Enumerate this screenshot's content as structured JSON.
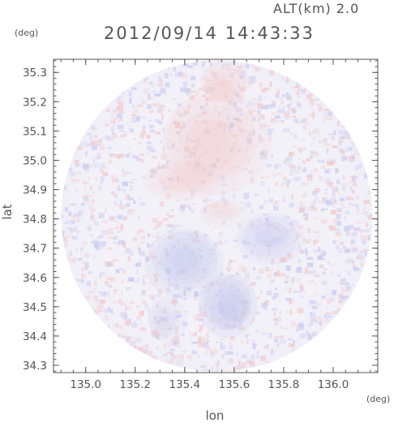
{
  "figure": {
    "altitude_label": "ALT(km) 2.0",
    "timestamp": "2012/09/14 14:43:33"
  },
  "chart_data": {
    "type": "heatmap",
    "title": "2012/09/14 14:43:33",
    "subtitle": "ALT(km) 2.0",
    "xlabel": "lon",
    "ylabel": "lat",
    "x_unit": "(deg)",
    "y_unit": "(deg)",
    "xlim": [
      134.87,
      136.18
    ],
    "ylim": [
      34.275,
      35.345
    ],
    "x_ticks": [
      135.0,
      135.2,
      135.4,
      135.6,
      135.8,
      136.0
    ],
    "x_tick_labels": [
      "135.0",
      "135.2",
      "135.4",
      "135.6",
      "135.8",
      "136.0"
    ],
    "y_ticks": [
      34.3,
      34.4,
      34.5,
      34.6,
      34.7,
      34.8,
      34.9,
      35.0,
      35.1,
      35.2,
      35.3
    ],
    "y_tick_labels": [
      "34.3",
      "34.4",
      "34.5",
      "34.6",
      "34.7",
      "34.8",
      "34.9",
      "35.0",
      "35.1",
      "35.2",
      "35.3"
    ],
    "radar_coverage": {
      "center_lon": 135.53,
      "center_lat": 34.81,
      "shape": "circle"
    },
    "colors": {
      "positive": "#f2c8c8",
      "negative": "#c4c8f0",
      "neutral": "#f3f1f8",
      "axis": "#555555"
    },
    "regions": [
      {
        "lon": 135.52,
        "lat": 35.06,
        "lon_r": 0.22,
        "lat_r": 0.18,
        "sign": "positive",
        "strength": 0.55
      },
      {
        "lon": 135.55,
        "lat": 35.26,
        "lon_r": 0.1,
        "lat_r": 0.07,
        "sign": "positive",
        "strength": 0.65
      },
      {
        "lon": 135.4,
        "lat": 34.93,
        "lon_r": 0.16,
        "lat_r": 0.07,
        "sign": "positive",
        "strength": 0.35
      },
      {
        "lon": 135.4,
        "lat": 34.65,
        "lon_r": 0.16,
        "lat_r": 0.12,
        "sign": "negative",
        "strength": 0.65
      },
      {
        "lon": 135.58,
        "lat": 34.5,
        "lon_r": 0.12,
        "lat_r": 0.11,
        "sign": "negative",
        "strength": 0.85
      },
      {
        "lon": 135.74,
        "lat": 34.74,
        "lon_r": 0.14,
        "lat_r": 0.09,
        "sign": "negative",
        "strength": 0.5
      },
      {
        "lon": 135.32,
        "lat": 34.45,
        "lon_r": 0.08,
        "lat_r": 0.08,
        "sign": "negative",
        "strength": 0.4
      },
      {
        "lon": 135.55,
        "lat": 34.82,
        "lon_r": 0.1,
        "lat_r": 0.05,
        "sign": "positive",
        "strength": 0.25
      }
    ]
  }
}
